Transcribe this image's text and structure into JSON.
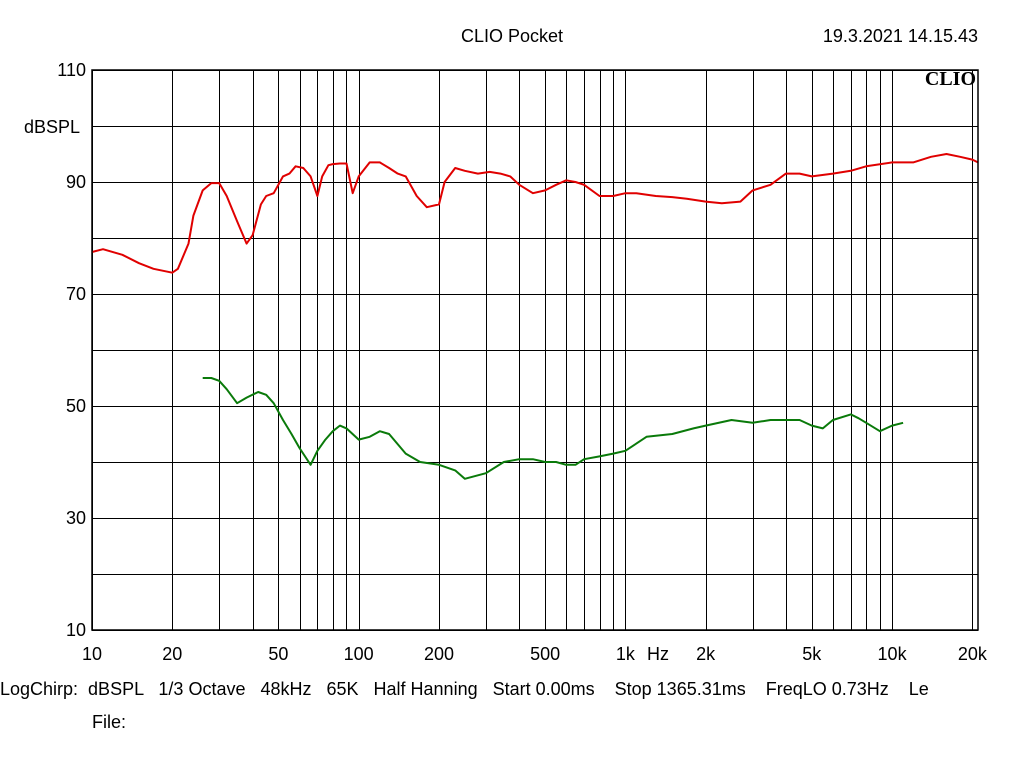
{
  "header": {
    "title": "CLIO Pocket",
    "timestamp": "19.3.2021 14.15.43",
    "logo": "CLIO"
  },
  "footer": {
    "settings_line": "LogChirp:  dBSPL   1/3 Octave   48kHz   65K   Half Hanning   Start 0.00ms    Stop 1365.31ms    FreqLO 0.73Hz    Le",
    "file_line": "File:"
  },
  "colors": {
    "series_1": "#e00000",
    "series_2": "#0a7a0a",
    "grid": "#000000",
    "background": "#ffffff"
  },
  "chart_data": {
    "type": "line",
    "title": "CLIO Pocket",
    "xlabel": "Hz",
    "ylabel": "dBSPL",
    "x_scale": "log",
    "xlim": [
      10,
      21000
    ],
    "ylim": [
      10,
      110
    ],
    "grid": true,
    "y_ticks": [
      10,
      30,
      50,
      70,
      90,
      110
    ],
    "x_tick_labels": [
      {
        "value": 10,
        "label": "10"
      },
      {
        "value": 20,
        "label": "20"
      },
      {
        "value": 50,
        "label": "50"
      },
      {
        "value": 100,
        "label": "100"
      },
      {
        "value": 200,
        "label": "200"
      },
      {
        "value": 500,
        "label": "500"
      },
      {
        "value": 1000,
        "label": "1k"
      },
      {
        "value": 2000,
        "label": "2k"
      },
      {
        "value": 5000,
        "label": "5k"
      },
      {
        "value": 10000,
        "label": "10k"
      },
      {
        "value": 20000,
        "label": "20k"
      }
    ],
    "series": [
      {
        "color": "#e00000",
        "x": [
          10,
          11,
          13,
          15,
          17,
          20,
          21,
          23,
          24,
          26,
          28,
          30,
          32,
          35,
          38,
          40,
          43,
          45,
          48,
          52,
          55,
          58,
          62,
          66,
          70,
          73,
          77,
          80,
          85,
          90,
          95,
          100,
          110,
          120,
          130,
          140,
          150,
          165,
          180,
          200,
          210,
          230,
          250,
          280,
          310,
          340,
          370,
          400,
          450,
          500,
          550,
          600,
          650,
          700,
          800,
          900,
          1000,
          1100,
          1300,
          1500,
          1700,
          2000,
          2300,
          2700,
          3000,
          3500,
          4000,
          4500,
          5000,
          6000,
          7000,
          8000,
          10000,
          12000,
          14000,
          16000,
          18000,
          20000,
          21000
        ],
        "y": [
          77.5,
          78,
          77,
          75.5,
          74.5,
          73.8,
          74.5,
          79,
          84,
          88.5,
          89.8,
          89.8,
          87.5,
          83,
          79,
          80.5,
          86,
          87.5,
          88,
          91,
          91.5,
          92.8,
          92.5,
          91,
          87.5,
          91,
          93,
          93.2,
          93.3,
          93.3,
          88,
          91,
          93.5,
          93.5,
          92.5,
          91.5,
          91,
          87.5,
          85.5,
          86,
          90,
          92.5,
          92,
          91.5,
          91.8,
          91.5,
          91,
          89.5,
          88,
          88.5,
          89.5,
          90.3,
          90,
          89.5,
          87.5,
          87.5,
          88,
          88,
          87.5,
          87.3,
          87,
          86.5,
          86.2,
          86.5,
          88.5,
          89.5,
          91.5,
          91.5,
          91,
          91.5,
          92,
          92.8,
          93.5,
          93.5,
          94.5,
          95,
          94.5,
          94,
          93.5
        ]
      },
      {
        "color": "#0a7a0a",
        "x": [
          26,
          28,
          30,
          32,
          35,
          38,
          42,
          45,
          48,
          52,
          56,
          60,
          66,
          70,
          75,
          80,
          85,
          90,
          100,
          110,
          120,
          130,
          150,
          170,
          200,
          230,
          250,
          300,
          350,
          400,
          450,
          500,
          550,
          600,
          650,
          700,
          800,
          900,
          1000,
          1200,
          1500,
          1800,
          2000,
          2500,
          3000,
          3500,
          4000,
          4500,
          5000,
          5500,
          6000,
          7000,
          7500,
          8000,
          9000,
          10000,
          11000
        ],
        "y": [
          55,
          55,
          54.5,
          53,
          50.5,
          51.5,
          52.5,
          52,
          50.5,
          47.5,
          45,
          42.5,
          39.5,
          42,
          44,
          45.5,
          46.5,
          46,
          44,
          44.5,
          45.5,
          45,
          41.5,
          40,
          39.5,
          38.5,
          37,
          38,
          40,
          40.5,
          40.5,
          40,
          40,
          39.5,
          39.5,
          40.5,
          41,
          41.5,
          42,
          44.5,
          45,
          46,
          46.5,
          47.5,
          47,
          47.5,
          47.5,
          47.5,
          46.5,
          46,
          47.5,
          48.5,
          47.8,
          47,
          45.5,
          46.5,
          47
        ]
      }
    ]
  }
}
